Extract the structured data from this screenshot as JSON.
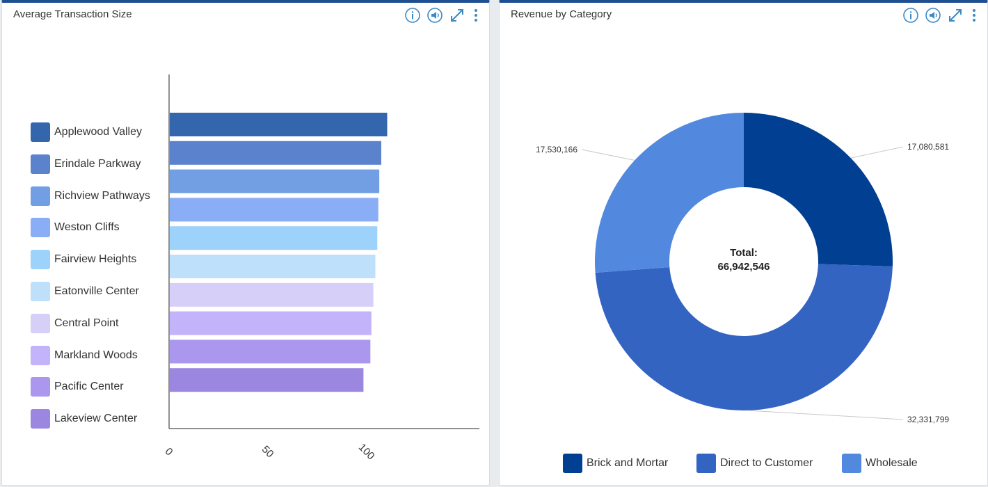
{
  "left_panel": {
    "title": "Average Transaction Size",
    "icons": [
      "info-icon",
      "audio-icon",
      "expand-icon",
      "more-icon"
    ]
  },
  "right_panel": {
    "title": "Revenue by Category",
    "icons": [
      "info-icon",
      "audio-icon",
      "expand-icon",
      "more-icon"
    ]
  },
  "chart_data": [
    {
      "type": "bar",
      "orientation": "horizontal",
      "title": "Average Transaction Size",
      "categories": [
        "Applewood Valley",
        "Erindale Parkway",
        "Richview Pathways",
        "Weston Cliffs",
        "Fairview Heights",
        "Eatonville Center",
        "Central Point",
        "Markland Woods",
        "Pacific Center",
        "Lakeview Center"
      ],
      "values": [
        110,
        107,
        106,
        105.5,
        105,
        104,
        103,
        102,
        101.5,
        98
      ],
      "colors": [
        "#3366ad",
        "#5b82cc",
        "#729ee3",
        "#8aaef5",
        "#9dd3fb",
        "#bfe0fb",
        "#d6cff7",
        "#c3b3fa",
        "#ab98ee",
        "#9b87e0"
      ],
      "xticks": [
        0,
        50,
        100
      ],
      "xlim": [
        0,
        157
      ],
      "legend_position": "left"
    },
    {
      "type": "pie",
      "title": "Revenue by Category",
      "center_label": "Total:",
      "center_value": "66,942,546",
      "slices": [
        {
          "label": "Brick and Mortar",
          "value": 17080581,
          "display": "17,080,581",
          "color": "#003f91"
        },
        {
          "label": "Direct to Customer",
          "value": 32331799,
          "display": "32,331,799",
          "color": "#3464c2"
        },
        {
          "label": "Wholesale",
          "value": 17530166,
          "display": "17,530,166",
          "color": "#5289de"
        }
      ],
      "legend_position": "bottom"
    }
  ]
}
